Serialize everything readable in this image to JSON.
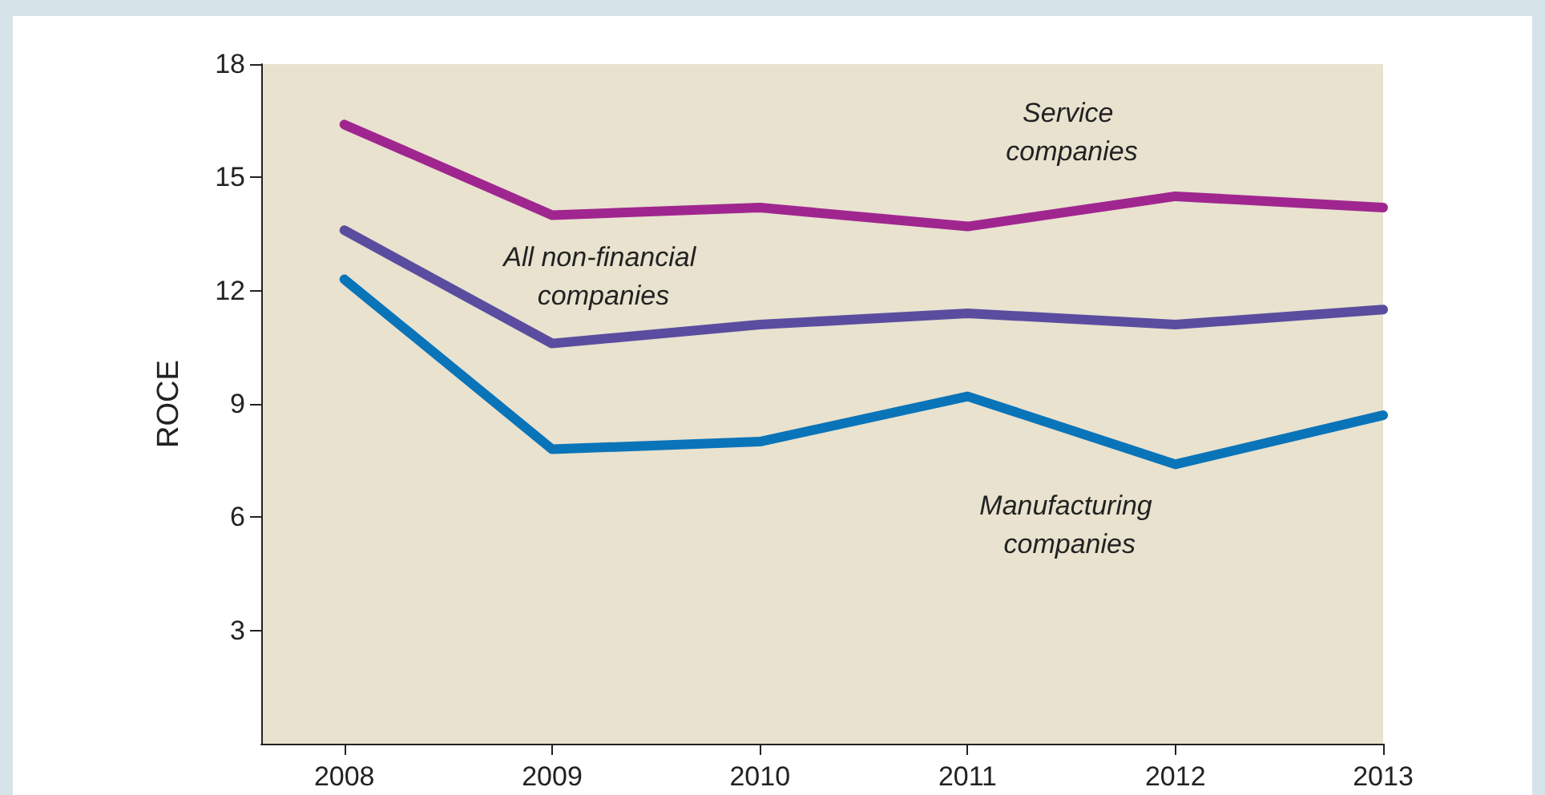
{
  "chart_data": {
    "type": "line",
    "ylabel": "ROCE",
    "x": [
      2008,
      2009,
      2010,
      2011,
      2012,
      2013
    ],
    "xlim": [
      2007.6,
      2013
    ],
    "xticks": [
      2008,
      2009,
      2010,
      2011,
      2012,
      2013
    ],
    "ylim": [
      0,
      18
    ],
    "yticks": [
      3,
      6,
      9,
      12,
      15,
      18
    ],
    "grid": false,
    "legend": false,
    "marker": "none",
    "line_style": "solid",
    "series": [
      {
        "name": "Service companies",
        "color": "#a0268f",
        "values": [
          16.4,
          14.0,
          14.2,
          13.7,
          14.5,
          14.2
        ]
      },
      {
        "name": "All non-financial companies",
        "color": "#5a4d9f",
        "values": [
          13.6,
          10.6,
          11.1,
          11.4,
          11.1,
          11.5
        ]
      },
      {
        "name": "Manufacturing companies",
        "color": "#0a74b9",
        "values": [
          12.3,
          7.8,
          8.0,
          9.2,
          7.4,
          8.7
        ]
      }
    ]
  }
}
